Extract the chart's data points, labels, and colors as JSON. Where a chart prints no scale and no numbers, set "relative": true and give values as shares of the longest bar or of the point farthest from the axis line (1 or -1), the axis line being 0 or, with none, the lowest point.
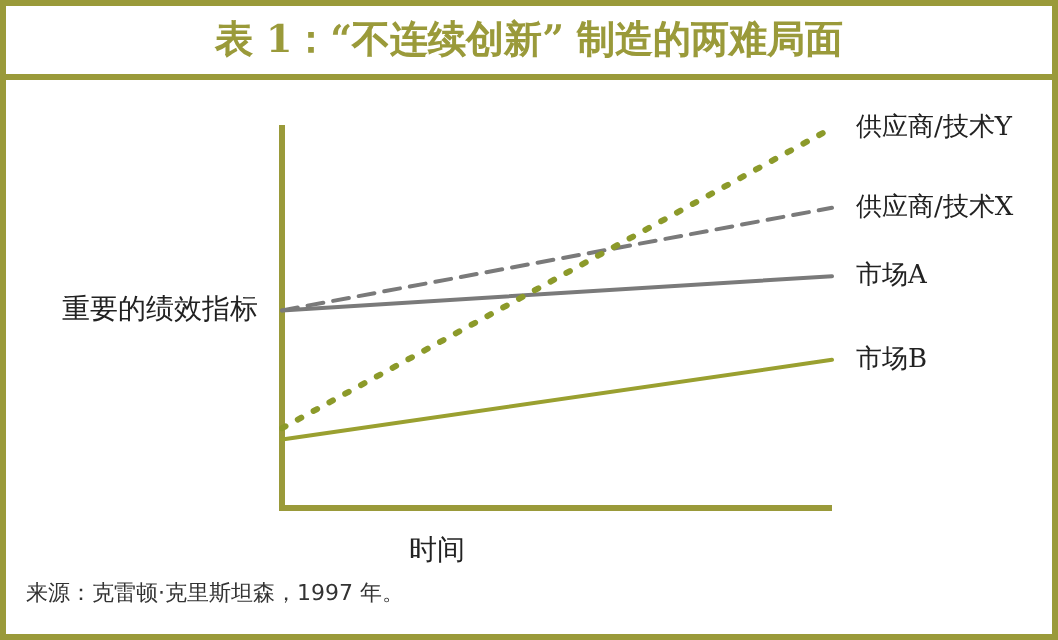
{
  "chart_data": {
    "type": "line",
    "title": "表 1：“不连续创新” 制造的两难局面",
    "xlabel": "时间",
    "ylabel": "重要的绩效指标",
    "annotations": [
      "来源：克雷顿·克里斯坦森，1997 年。"
    ],
    "categories": [
      null,
      null
    ],
    "relative": true,
    "ref_lines": [
      {
        "axis": "y",
        "value": 0,
        "color": "#9a9a3a"
      }
    ],
    "legend": false,
    "grid": false,
    "marker": "none",
    "series": [
      {
        "name": "供应商/技术Y",
        "color": "#8c9a2a",
        "line_style": "dotted",
        "values": [
          0.21,
          1
        ]
      },
      {
        "name": "供应商/技术X",
        "color": "#7a7a7a",
        "line_style": "dashed",
        "values": [
          0.52,
          0.79
        ]
      },
      {
        "name": "市场A",
        "color": "#7a7a7a",
        "line_style": "solid",
        "values": [
          0.52,
          0.61
        ]
      },
      {
        "name": "市场B",
        "color": "#9aa030",
        "line_style": "solid",
        "values": [
          0.18,
          0.39
        ]
      }
    ]
  }
}
